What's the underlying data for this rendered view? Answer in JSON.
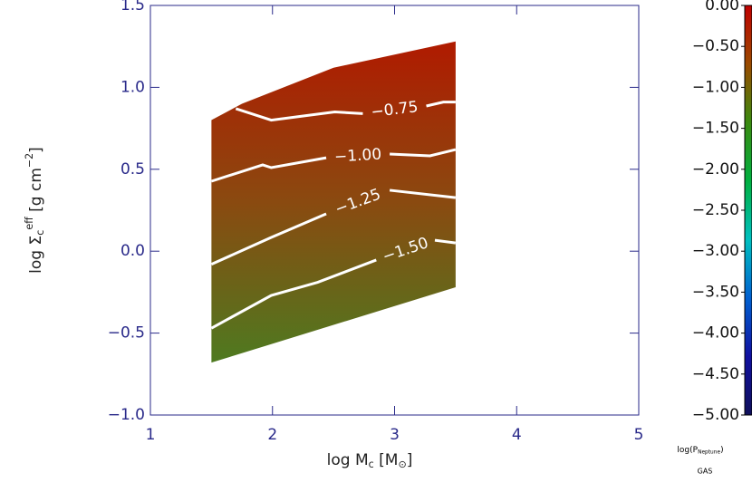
{
  "chart_data": {
    "type": "contour",
    "xlabel": [
      {
        "text": "log M",
        "shift": "base"
      },
      {
        "text": "c",
        "shift": "sub"
      },
      {
        "text": " [M",
        "shift": "base"
      },
      {
        "text": "⊙",
        "shift": "sub"
      },
      {
        "text": "]",
        "shift": "base"
      }
    ],
    "ylabel": [
      {
        "text": "log Σ",
        "shift": "base"
      },
      {
        "text": "c",
        "shift": "sub"
      },
      {
        "text": "eff",
        "shift": "sup"
      },
      {
        "text": " [g cm",
        "shift": "base"
      },
      {
        "text": "−2",
        "shift": "sup"
      },
      {
        "text": "]",
        "shift": "base"
      }
    ],
    "xlim": [
      1,
      5
    ],
    "ylim": [
      -1.0,
      1.5
    ],
    "xticks": [
      1,
      2,
      3,
      4,
      5
    ],
    "yticks": [
      {
        "value": 1.5,
        "label": "1.5"
      },
      {
        "value": 1.0,
        "label": "1.0"
      },
      {
        "value": 0.5,
        "label": "0.5"
      },
      {
        "value": 0.0,
        "label": "0.0"
      },
      {
        "value": -0.5,
        "label": "−0.5"
      },
      {
        "value": -1.0,
        "label": "−1.0"
      }
    ],
    "axis_color": "#2a2a8a",
    "region": {
      "x": [
        1.5,
        1.75,
        2.5,
        3.5,
        3.5,
        1.5
      ],
      "y": [
        0.8,
        0.9,
        1.12,
        1.28,
        -0.22,
        -0.68
      ],
      "colors": [
        "#b01a00",
        "#8a4a10",
        "#4e7a20"
      ]
    },
    "contours": [
      {
        "label": "−0.75",
        "x": [
          1.7,
          1.99,
          2.51,
          2.74,
          null,
          3.26,
          3.4,
          3.5
        ],
        "y": [
          0.87,
          0.8,
          0.85,
          0.84,
          null,
          0.886,
          0.91,
          0.91
        ]
      },
      {
        "label": "−1.00",
        "x": [
          1.5,
          1.92,
          1.99,
          2.44,
          null,
          2.96,
          3.29,
          3.5
        ],
        "y": [
          0.427,
          0.527,
          0.51,
          0.57,
          null,
          0.593,
          0.582,
          0.62
        ]
      },
      {
        "label": "−1.25",
        "x": [
          1.5,
          1.99,
          2.44,
          null,
          2.96,
          3.5
        ],
        "y": [
          -0.08,
          0.084,
          0.228,
          null,
          0.372,
          0.327
        ]
      },
      {
        "label": "−1.50",
        "x": [
          1.5,
          1.99,
          2.37,
          2.85,
          null,
          3.33,
          3.5
        ],
        "y": [
          -0.47,
          -0.27,
          -0.19,
          -0.054,
          null,
          0.067,
          0.05
        ]
      }
    ],
    "contour_color": "#ffffff",
    "colorbar": {
      "zlim": [
        -5.0,
        0.0
      ],
      "ticks": [
        {
          "value": 0,
          "label": "0.00"
        },
        {
          "value": -0.5,
          "label": "−0.50"
        },
        {
          "value": -1,
          "label": "−1.00"
        },
        {
          "value": -1.5,
          "label": "−1.50"
        },
        {
          "value": -2,
          "label": "−2.00"
        },
        {
          "value": -2.5,
          "label": "−2.50"
        },
        {
          "value": -3,
          "label": "−3.00"
        },
        {
          "value": -3.5,
          "label": "−3.50"
        },
        {
          "value": -4,
          "label": "−4.00"
        },
        {
          "value": -4.5,
          "label": "−4.50"
        },
        {
          "value": -5,
          "label": "−5.00"
        }
      ],
      "colors": [
        "#c00000",
        "#9a4a00",
        "#3a8a10",
        "#00b040",
        "#00c0c0",
        "#0060d0",
        "#1010a0",
        "#10105a"
      ],
      "label": [
        {
          "text": "log(P",
          "shift": "base"
        },
        {
          "text": "Neptune",
          "shift": "sub"
        },
        {
          "text": ")",
          "shift": "base"
        }
      ],
      "sublabel": "GAS"
    }
  }
}
